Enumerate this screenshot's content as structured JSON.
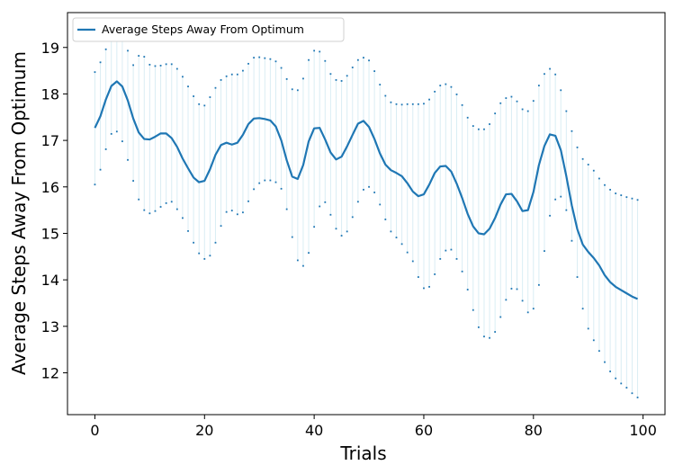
{
  "chart_data": {
    "type": "line",
    "title": "",
    "xlabel": "Trials",
    "ylabel": "Average Steps Away From Optimum",
    "xlim": [
      -5,
      104
    ],
    "ylim": [
      11.1,
      19.75
    ],
    "xticks": [
      0,
      20,
      40,
      60,
      80,
      100
    ],
    "yticks": [
      12,
      13,
      14,
      15,
      16,
      17,
      18,
      19
    ],
    "grid": false,
    "legend": {
      "location": "upper left",
      "entries": [
        "Average Steps Away From Optimum"
      ]
    },
    "colors": {
      "line": "#1f77b4",
      "error_bar": "#add8e6",
      "axes": "#000000"
    },
    "x": [
      0,
      1,
      2,
      3,
      4,
      5,
      6,
      7,
      8,
      9,
      10,
      11,
      12,
      13,
      14,
      15,
      16,
      17,
      18,
      19,
      20,
      21,
      22,
      23,
      24,
      25,
      26,
      27,
      28,
      29,
      30,
      31,
      32,
      33,
      34,
      35,
      36,
      37,
      38,
      39,
      40,
      41,
      42,
      43,
      44,
      45,
      46,
      47,
      48,
      49,
      50,
      51,
      52,
      53,
      54,
      55,
      56,
      57,
      58,
      59,
      60,
      61,
      62,
      63,
      64,
      65,
      66,
      67,
      68,
      69,
      70,
      71,
      72,
      73,
      74,
      75,
      76,
      77,
      78,
      79,
      80,
      81,
      82,
      83,
      84,
      85,
      86,
      87,
      88,
      89,
      90,
      91,
      92,
      93,
      94,
      95,
      96,
      97,
      98,
      99
    ],
    "series": [
      {
        "name": "Average Steps Away From Optimum",
        "values": [
          17.27,
          17.52,
          17.88,
          18.17,
          18.27,
          18.16,
          17.86,
          17.47,
          17.17,
          17.03,
          17.02,
          17.08,
          17.15,
          17.15,
          17.05,
          16.86,
          16.61,
          16.4,
          16.2,
          16.1,
          16.13,
          16.38,
          16.69,
          16.9,
          16.95,
          16.91,
          16.95,
          17.12,
          17.35,
          17.47,
          17.48,
          17.46,
          17.43,
          17.3,
          17.0,
          16.57,
          16.22,
          16.17,
          16.47,
          16.98,
          17.26,
          17.27,
          17.02,
          16.74,
          16.59,
          16.65,
          16.87,
          17.12,
          17.36,
          17.42,
          17.29,
          17.03,
          16.72,
          16.48,
          16.36,
          16.3,
          16.23,
          16.08,
          15.9,
          15.8,
          15.84,
          16.05,
          16.3,
          16.44,
          16.45,
          16.33,
          16.07,
          15.76,
          15.42,
          15.15,
          15.0,
          14.98,
          15.1,
          15.33,
          15.62,
          15.84,
          15.85,
          15.69,
          15.48,
          15.5,
          15.89,
          16.47,
          16.88,
          17.13,
          17.1,
          16.79,
          16.23,
          15.6,
          15.09,
          14.76,
          14.6,
          14.47,
          14.31,
          14.1,
          13.95,
          13.85,
          13.78,
          13.71,
          13.64,
          13.59
        ],
        "upper": [
          18.47,
          18.68,
          18.96,
          19.18,
          19.25,
          19.16,
          18.93,
          18.62,
          18.82,
          18.8,
          18.63,
          18.6,
          18.61,
          18.64,
          18.64,
          18.54,
          18.37,
          18.16,
          17.95,
          17.78,
          17.75,
          17.93,
          18.13,
          18.3,
          18.38,
          18.42,
          18.42,
          18.5,
          18.65,
          18.78,
          18.79,
          18.77,
          18.75,
          18.7,
          18.56,
          18.32,
          18.1,
          18.08,
          18.33,
          18.73,
          18.93,
          18.91,
          18.71,
          18.43,
          18.3,
          18.28,
          18.39,
          18.57,
          18.73,
          18.78,
          18.72,
          18.49,
          18.2,
          17.96,
          17.82,
          17.78,
          17.77,
          17.78,
          17.78,
          17.78,
          17.79,
          17.88,
          18.05,
          18.18,
          18.21,
          18.15,
          17.99,
          17.76,
          17.49,
          17.31,
          17.24,
          17.24,
          17.35,
          17.58,
          17.8,
          17.91,
          17.94,
          17.84,
          17.67,
          17.63,
          17.85,
          18.18,
          18.43,
          18.54,
          18.42,
          18.08,
          17.63,
          17.2,
          16.85,
          16.6,
          16.48,
          16.35,
          16.18,
          16.04,
          15.94,
          15.86,
          15.82,
          15.78,
          15.75,
          15.72
        ],
        "lower": [
          16.05,
          16.37,
          16.81,
          17.14,
          17.19,
          16.98,
          16.58,
          16.13,
          15.73,
          15.5,
          15.43,
          15.48,
          15.57,
          15.65,
          15.68,
          15.52,
          15.33,
          15.05,
          14.8,
          14.57,
          14.45,
          14.52,
          14.8,
          15.16,
          15.46,
          15.49,
          15.41,
          15.45,
          15.69,
          15.95,
          16.08,
          16.14,
          16.14,
          16.1,
          15.96,
          15.52,
          14.92,
          14.42,
          14.3,
          14.58,
          15.14,
          15.58,
          15.67,
          15.4,
          15.1,
          14.95,
          15.04,
          15.35,
          15.68,
          15.94,
          16.0,
          15.88,
          15.62,
          15.3,
          15.04,
          14.91,
          14.77,
          14.59,
          14.4,
          14.06,
          13.82,
          13.85,
          14.12,
          14.45,
          14.63,
          14.65,
          14.45,
          14.18,
          13.79,
          13.35,
          12.98,
          12.78,
          12.75,
          12.88,
          13.2,
          13.57,
          13.81,
          13.8,
          13.55,
          13.3,
          13.38,
          13.89,
          14.62,
          15.38,
          15.73,
          15.79,
          15.5,
          14.84,
          14.06,
          13.38,
          12.95,
          12.7,
          12.47,
          12.23,
          12.03,
          11.88,
          11.77,
          11.68,
          11.56,
          11.47
        ]
      }
    ]
  }
}
